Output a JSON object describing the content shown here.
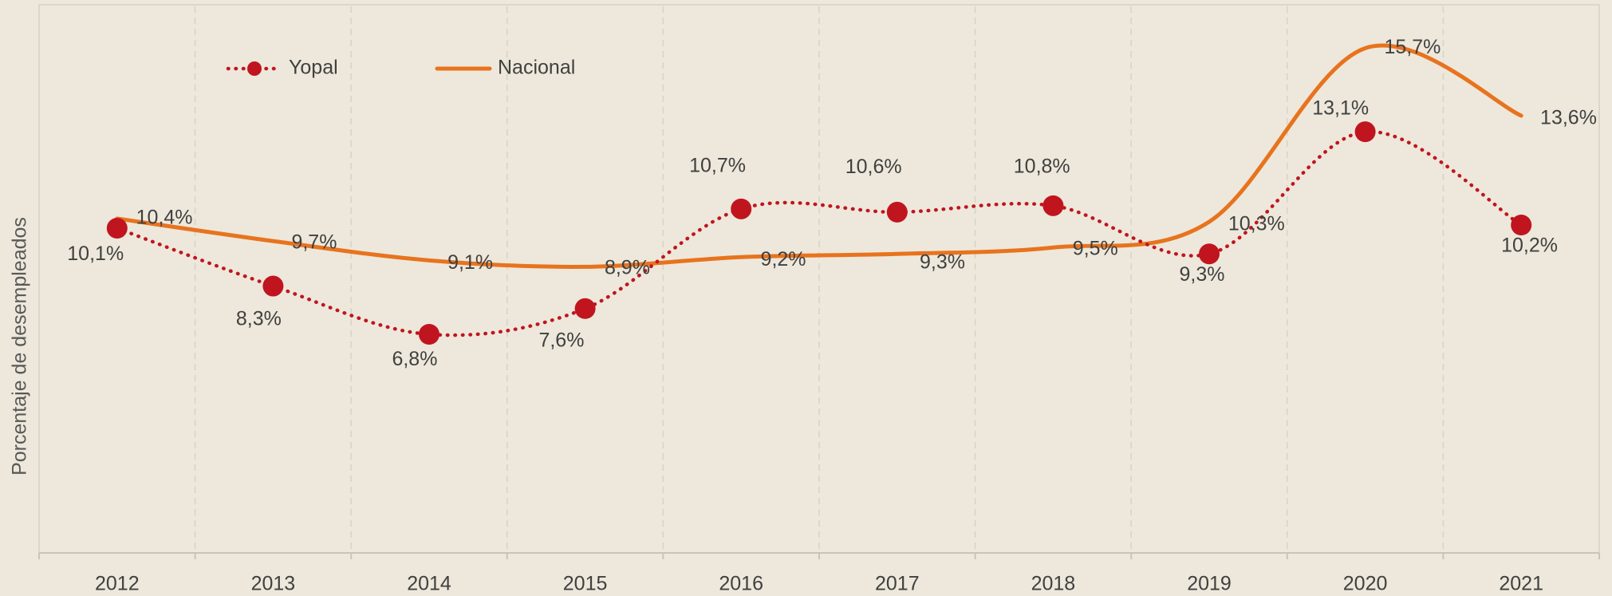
{
  "chart_data": {
    "type": "line",
    "y_axis_label": "Porcentaje de desempleados",
    "categories": [
      "2012",
      "2013",
      "2014",
      "2015",
      "2016",
      "2017",
      "2018",
      "2019",
      "2020",
      "2021"
    ],
    "ylim": [
      0,
      17
    ],
    "grid": true,
    "legend": "top-left",
    "series": [
      {
        "name": "Yopal",
        "color": "#c0151f",
        "style": "dotted",
        "markers": true,
        "values": [
          10.1,
          8.3,
          6.8,
          7.6,
          10.7,
          10.6,
          10.8,
          9.3,
          13.1,
          10.2
        ],
        "value_labels": [
          "10,1%",
          "8,3%",
          "6,8%",
          "7,6%",
          "10,7%",
          "10,6%",
          "10,8%",
          "9,3%",
          "13,1%",
          "10,2%"
        ]
      },
      {
        "name": "Nacional",
        "color": "#e8731e",
        "style": "solid",
        "markers": false,
        "values": [
          10.4,
          9.7,
          9.1,
          8.9,
          9.2,
          9.3,
          9.5,
          10.3,
          15.7,
          13.6
        ],
        "value_labels": [
          "10,4%",
          "9,7%",
          "9,1%",
          "8,9%",
          "9,2%",
          "9,3%",
          "9,5%",
          "10,3%",
          "15,7%",
          "13,6%"
        ]
      }
    ]
  }
}
